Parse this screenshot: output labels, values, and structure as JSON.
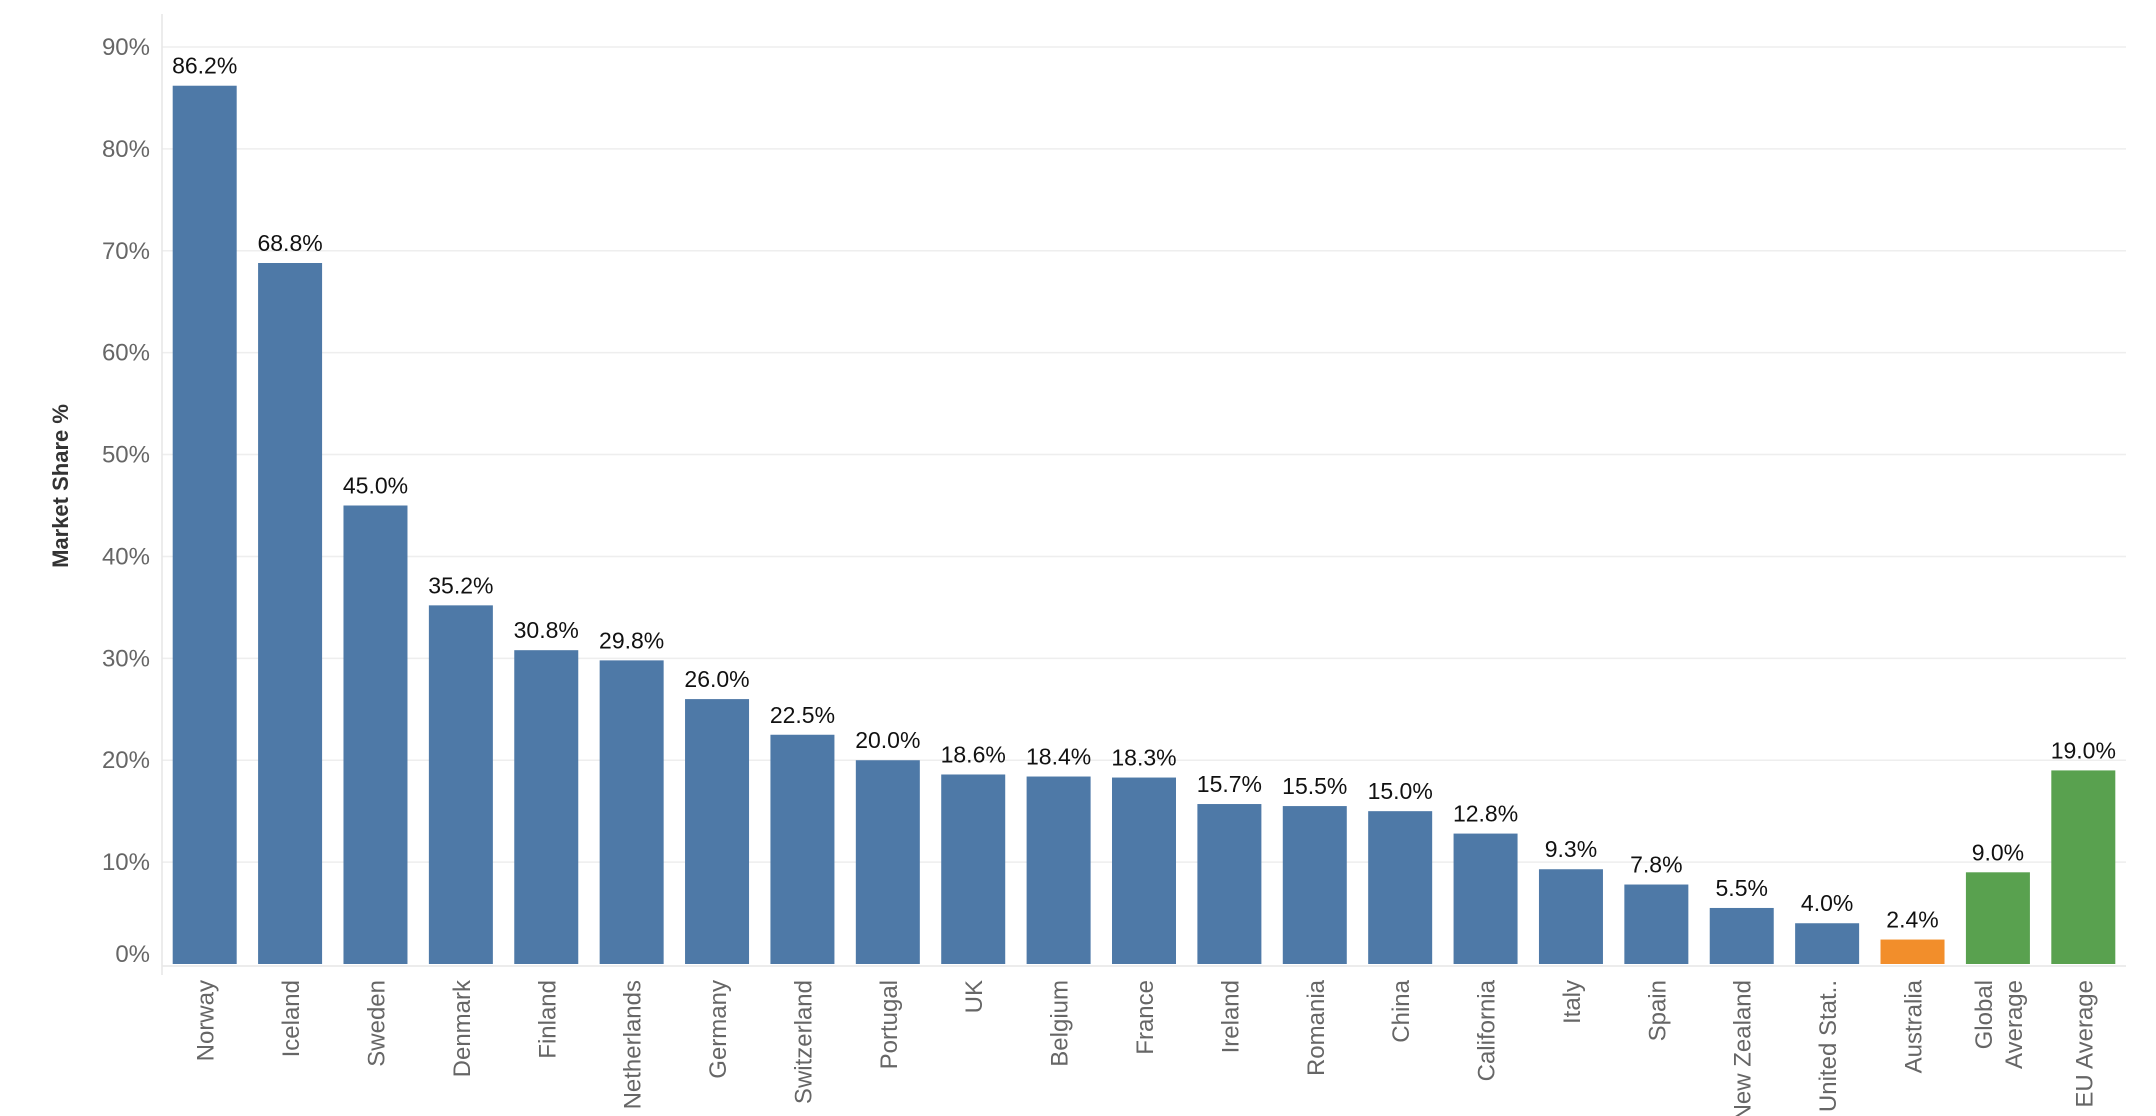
{
  "chart_data": {
    "type": "bar",
    "title": "",
    "xlabel": "",
    "ylabel": "Market Share %",
    "ylim": [
      0,
      90
    ],
    "yticks": [
      0,
      10,
      20,
      30,
      40,
      50,
      60,
      70,
      80,
      90
    ],
    "ytick_labels": [
      "0%",
      "10%",
      "20%",
      "30%",
      "40%",
      "50%",
      "60%",
      "70%",
      "80%",
      "90%"
    ],
    "grid": true,
    "legend": "none",
    "categories": [
      "Norway",
      "Iceland",
      "Sweden",
      "Denmark",
      "Finland",
      "Netherlands",
      "Germany",
      "Switzerland",
      "Portugal",
      "UK",
      "Belgium",
      "France",
      "Ireland",
      "Romania",
      "China",
      "California",
      "Italy",
      "Spain",
      "New Zealand",
      "United Stat..",
      "Australia",
      "Global Average",
      "EU Average"
    ],
    "category_label_lines": [
      [
        "Norway"
      ],
      [
        "Iceland"
      ],
      [
        "Sweden"
      ],
      [
        "Denmark"
      ],
      [
        "Finland"
      ],
      [
        "Netherlands"
      ],
      [
        "Germany"
      ],
      [
        "Switzerland"
      ],
      [
        "Portugal"
      ],
      [
        "UK"
      ],
      [
        "Belgium"
      ],
      [
        "France"
      ],
      [
        "Ireland"
      ],
      [
        "Romania"
      ],
      [
        "China"
      ],
      [
        "California"
      ],
      [
        "Italy"
      ],
      [
        "Spain"
      ],
      [
        "New Zealand"
      ],
      [
        "United Stat.."
      ],
      [
        "Australia"
      ],
      [
        "Global",
        "Average"
      ],
      [
        "EU Average"
      ]
    ],
    "values": [
      86.2,
      68.8,
      45.0,
      35.2,
      30.8,
      29.8,
      26.0,
      22.5,
      20.0,
      18.6,
      18.4,
      18.3,
      15.7,
      15.5,
      15.0,
      12.8,
      9.3,
      7.8,
      5.5,
      4.0,
      2.4,
      9.0,
      19.0
    ],
    "data_labels": [
      "86.2%",
      "68.8%",
      "45.0%",
      "35.2%",
      "30.8%",
      "29.8%",
      "26.0%",
      "22.5%",
      "20.0%",
      "18.6%",
      "18.4%",
      "18.3%",
      "15.7%",
      "15.5%",
      "15.0%",
      "12.8%",
      "9.3%",
      "7.8%",
      "5.5%",
      "4.0%",
      "2.4%",
      "9.0%",
      "19.0%"
    ],
    "colors": [
      "#4e79a7",
      "#4e79a7",
      "#4e79a7",
      "#4e79a7",
      "#4e79a7",
      "#4e79a7",
      "#4e79a7",
      "#4e79a7",
      "#4e79a7",
      "#4e79a7",
      "#4e79a7",
      "#4e79a7",
      "#4e79a7",
      "#4e79a7",
      "#4e79a7",
      "#4e79a7",
      "#4e79a7",
      "#4e79a7",
      "#4e79a7",
      "#4e79a7",
      "#f28e2b",
      "#59a14f",
      "#59a14f"
    ]
  }
}
